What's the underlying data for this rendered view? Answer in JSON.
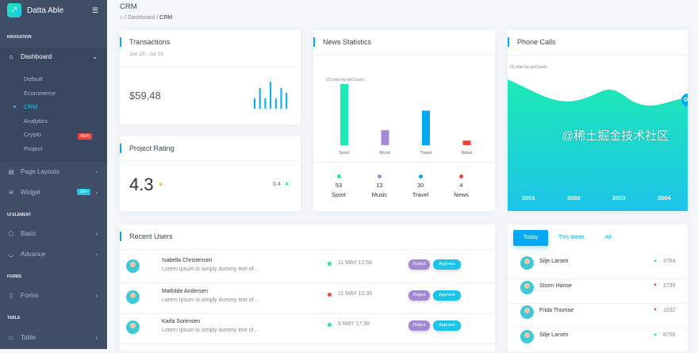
{
  "sidebar": {
    "brand": "Datta Able",
    "sections": [
      "NAVIGATION",
      "UI ELEMENT",
      "FORMS",
      "TABLE"
    ],
    "dashboard": "Dashboard",
    "subitems": [
      "Default",
      "Ecommerce",
      "CRM",
      "Analytics",
      "Crypto",
      "Project"
    ],
    "new_badge": "NEW",
    "items": [
      "Page Layouts",
      "Widget",
      "Basic",
      "Advance",
      "Forms",
      "Table"
    ],
    "widget_badge": "100+"
  },
  "page": {
    "title": "CRM",
    "breadcrumb": [
      "Dashboard",
      "CRM"
    ]
  },
  "transactions": {
    "title": "Transactions",
    "range": "Jun 23 - Jul 23",
    "amount": "$59,48",
    "sparkline": [
      13,
      26,
      13,
      34,
      13,
      26,
      20
    ]
  },
  "rating": {
    "title": "Project Rating",
    "value": "4.3",
    "change": "0.4"
  },
  "news": {
    "title": "News Statistics",
    "credit": "JS chart by amCharts",
    "items": [
      {
        "label": "Sport",
        "value": 53,
        "color": "#1de9b6"
      },
      {
        "label": "Music",
        "value": 13,
        "color": "#a389d4"
      },
      {
        "label": "Travel",
        "value": 30,
        "color": "#04a9f5"
      },
      {
        "label": "News",
        "value": 4,
        "color": "#f44236"
      }
    ]
  },
  "calls": {
    "title": "Phone Calls",
    "credit": "JS chart by amCharts",
    "years": [
      "2001",
      "2002",
      "2003",
      "2004"
    ]
  },
  "recent": {
    "title": "Recent Users",
    "reject": "Reject",
    "approve": "Approve",
    "rows": [
      {
        "name": "Isabella Christensen",
        "text": "Lorem Ipsum is simply dummy text of...",
        "time": "11 MAY 12:56",
        "status": "#1de9b6"
      },
      {
        "name": "Mathilde Andersen",
        "text": "Lorem Ipsum is simply dummy text of...",
        "time": "11 MAY 10:35",
        "status": "#f44236"
      },
      {
        "name": "Karla Sorensen",
        "text": "Lorem Ipsum is simply dummy text of...",
        "time": "9 MAY 17:38",
        "status": "#1de9b6"
      }
    ]
  },
  "leaders": {
    "tabs": [
      "Today",
      "This Week",
      "All"
    ],
    "rows": [
      {
        "name": "Silje Larsen",
        "value": "3784",
        "trend": "up"
      },
      {
        "name": "Storm Hanse",
        "value": "2739",
        "trend": "down"
      },
      {
        "name": "Frida Thomse",
        "value": "1032",
        "trend": "down"
      },
      {
        "name": "Silje Larsen",
        "value": "8750",
        "trend": "up"
      }
    ]
  },
  "watermark": "@稀土掘金技术社区"
}
